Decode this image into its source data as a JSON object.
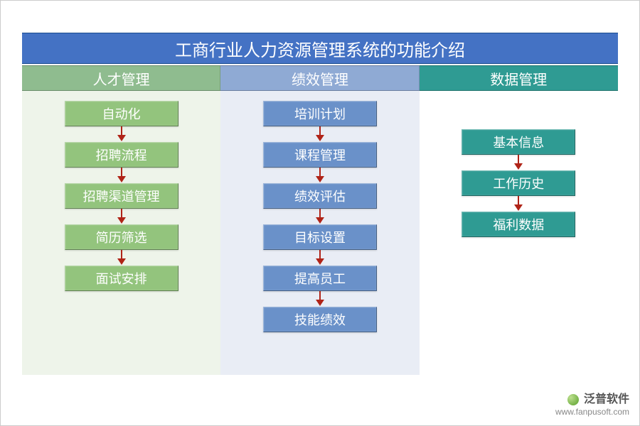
{
  "title": {
    "text": "工商行业人力资源管理系统的功能介绍",
    "bg": "#4472c4",
    "text_color": "#ffffff",
    "font_size": 24
  },
  "categories": [
    {
      "label": "人才管理",
      "bg": "#8fbc8f"
    },
    {
      "label": "绩效管理",
      "bg": "#8faad4"
    },
    {
      "label": "数据管理",
      "bg": "#2f9b93"
    }
  ],
  "columns": [
    {
      "col_bg": "#eef4ea",
      "node_bg": "#93c47d",
      "node_text_color": "#ffffff",
      "arrow_color": "#b02418",
      "top_spacer": false,
      "items": [
        "自动化",
        "招聘流程",
        "招聘渠道管理",
        "简历筛选",
        "面试安排"
      ]
    },
    {
      "col_bg": "#e9edf5",
      "node_bg": "#6a91c9",
      "node_text_color": "#ffffff",
      "arrow_color": "#b02418",
      "top_spacer": false,
      "items": [
        "培训计划",
        "课程管理",
        "绩效评估",
        "目标设置",
        "提高员工",
        "技能绩效"
      ]
    },
    {
      "col_bg": "#ffffff",
      "node_bg": "#2f9b93",
      "node_text_color": "#ffffff",
      "arrow_color": "#b02418",
      "top_spacer": true,
      "items": [
        "基本信息",
        "工作历史",
        "福利数据"
      ]
    }
  ],
  "watermark": {
    "brand": "泛普软件",
    "url": "www.fanpusoft.com",
    "logo_color": "#5aa02c"
  }
}
